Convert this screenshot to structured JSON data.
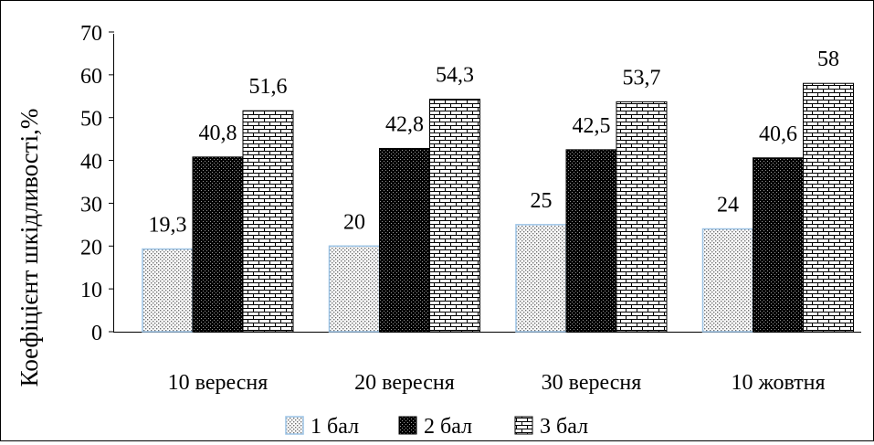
{
  "chart_data": {
    "type": "bar",
    "ylabel": "Коефіцієнт шкідливості,%",
    "ylim": [
      0,
      70
    ],
    "yticks": [
      0,
      10,
      20,
      30,
      40,
      50,
      60,
      70
    ],
    "categories": [
      "10 вересня",
      "20 вересня",
      "30 вересня",
      "10 жовтня"
    ],
    "series": [
      {
        "name": "1 бал",
        "values": [
          19.3,
          20,
          25,
          24
        ],
        "labels": [
          "19,3",
          "20",
          "25",
          "24"
        ],
        "pattern": "dots"
      },
      {
        "name": "2 бал",
        "values": [
          40.8,
          42.8,
          42.5,
          40.6
        ],
        "labels": [
          "40,8",
          "42,8",
          "42,5",
          "40,6"
        ],
        "pattern": "dark"
      },
      {
        "name": "3 бал",
        "values": [
          51.6,
          54.3,
          53.7,
          58
        ],
        "labels": [
          "51,6",
          "54,3",
          "53,7",
          "58"
        ],
        "pattern": "brick"
      }
    ],
    "grid": false,
    "legend": "bottom"
  }
}
